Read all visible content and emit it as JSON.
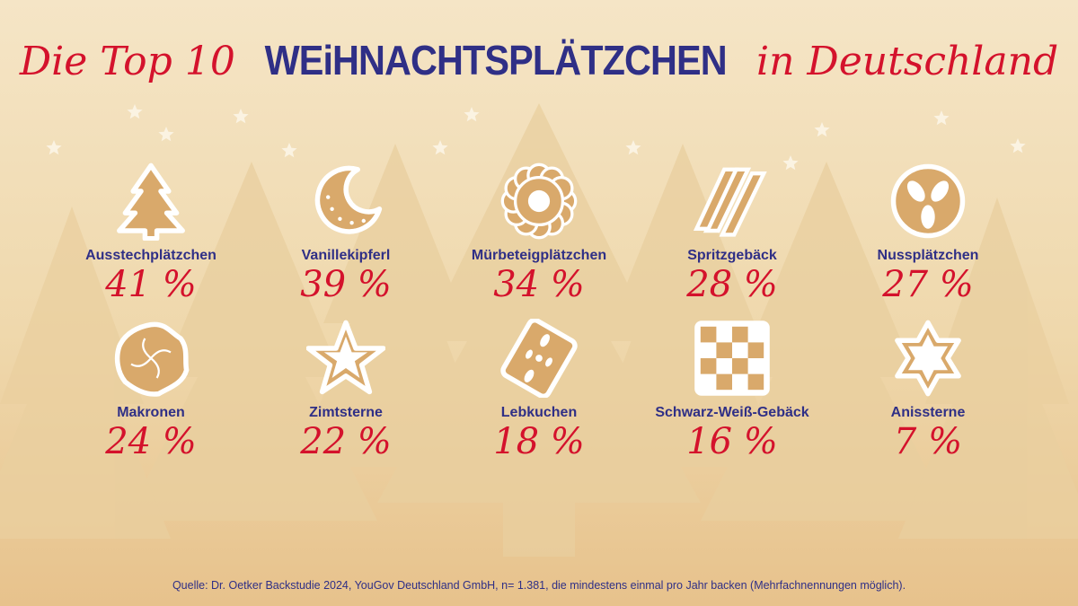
{
  "title": {
    "part1": "Die Top 10",
    "part2": "WEiHNACHTSPLÄTZCHEN",
    "part3": "in Deutschland"
  },
  "colors": {
    "accent_red": "#d4122c",
    "navy": "#2f2f86",
    "cookie": "#d9a96b",
    "background": "#f3dfb8"
  },
  "chart_data": {
    "type": "table",
    "title": "Die Top 10 WEiHNACHTSPLÄTZCHEN in Deutschland",
    "categories": [
      "Ausstechplätzchen",
      "Vanillekipferl",
      "Mürbeteigplätzchen",
      "Spritzgebäck",
      "Nussplätzchen",
      "Makronen",
      "Zimtsterne",
      "Lebkuchen",
      "Schwarz-Weiß-Gebäck",
      "Anissterne"
    ],
    "values": [
      41,
      39,
      34,
      28,
      27,
      24,
      22,
      18,
      16,
      7
    ],
    "unit": "%"
  },
  "items": [
    {
      "label": "Ausstechplätzchen",
      "pct": "41 %",
      "icon": "christmas-tree-cookie-icon"
    },
    {
      "label": "Vanillekipferl",
      "pct": "39 %",
      "icon": "crescent-cookie-icon"
    },
    {
      "label": "Mürbeteigplätzchen",
      "pct": "34 %",
      "icon": "flower-cookie-icon"
    },
    {
      "label": "Spritzgebäck",
      "pct": "28 %",
      "icon": "piped-cookie-icon"
    },
    {
      "label": "Nussplätzchen",
      "pct": "27 %",
      "icon": "nut-cookie-icon"
    },
    {
      "label": "Makronen",
      "pct": "24 %",
      "icon": "macaroon-icon"
    },
    {
      "label": "Zimtsterne",
      "pct": "22 %",
      "icon": "star-cookie-icon"
    },
    {
      "label": "Lebkuchen",
      "pct": "18 %",
      "icon": "gingerbread-icon"
    },
    {
      "label": "Schwarz-Weiß-Gebäck",
      "pct": "16 %",
      "icon": "checkerboard-cookie-icon"
    },
    {
      "label": "Anissterne",
      "pct": "7 %",
      "icon": "six-point-star-cookie-icon"
    }
  ],
  "source": "Quelle: Dr. Oetker Backstudie 2024, YouGov Deutschland GmbH, n= 1.381, die mindestens einmal pro Jahr backen (Mehrfachnennungen möglich)."
}
